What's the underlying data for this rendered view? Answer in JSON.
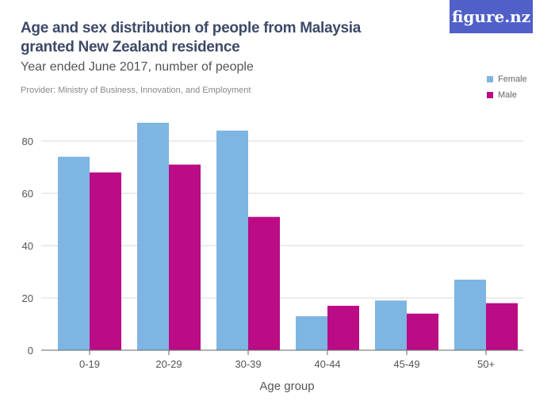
{
  "header": {
    "title": "Age and sex distribution of people from Malaysia granted New Zealand residence",
    "subtitle": "Year ended June 2017, number of people",
    "provider": "Provider: Ministry of Business, Innovation, and Employment",
    "logo": "figure.nz"
  },
  "chart_data": {
    "type": "bar",
    "title": "Age and sex distribution of people from Malaysia granted New Zealand residence",
    "subtitle": "Year ended June 2017, number of people",
    "xlabel": "Age group",
    "ylabel": "",
    "categories": [
      "0-19",
      "20-29",
      "30-39",
      "40-44",
      "45-49",
      "50+"
    ],
    "series": [
      {
        "name": "Female",
        "color": "#7eb5e3",
        "values": [
          74,
          87,
          84,
          13,
          19,
          27
        ]
      },
      {
        "name": "Male",
        "color": "#bb0c85",
        "values": [
          68,
          71,
          51,
          17,
          14,
          18
        ]
      }
    ],
    "ylim": [
      0,
      90
    ],
    "yticks": [
      0,
      20,
      40,
      60,
      80
    ],
    "grid": true,
    "legend": "top-right"
  }
}
